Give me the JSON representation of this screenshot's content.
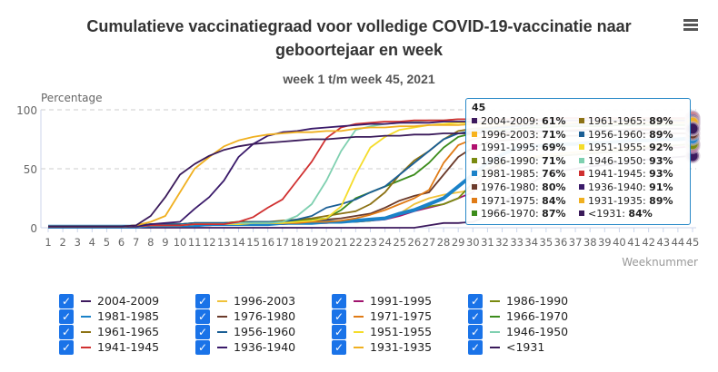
{
  "header": {
    "title_line1": "Cumulatieve vaccinatiegraad voor volledige COVID-19-vaccinatie naar",
    "title_line2": "geboortejaar en week",
    "subtitle": "week 1 t/m week 45, 2021",
    "menu_icon": "hamburger-menu-icon"
  },
  "chart_data": {
    "type": "line",
    "title": "Cumulatieve vaccinatiegraad voor volledige COVID-19-vaccinatie naar geboortejaar en week",
    "subtitle": "week 1 t/m week 45, 2021",
    "xlabel": "Weeknummer",
    "ylabel": "Percentage",
    "ylim": [
      0,
      100
    ],
    "yticks": [
      "0",
      "50",
      "100"
    ],
    "x": [
      1,
      2,
      3,
      4,
      5,
      6,
      7,
      8,
      9,
      10,
      11,
      12,
      13,
      14,
      15,
      16,
      17,
      18,
      19,
      20,
      21,
      22,
      23,
      24,
      25,
      26,
      27,
      28,
      29,
      30,
      31,
      32,
      33,
      34,
      35,
      36,
      37,
      38,
      39,
      40,
      41,
      42,
      43,
      44,
      45
    ],
    "grid": "horizontal dashed",
    "legend_placement": "bottom",
    "series": [
      {
        "name": "2004-2009",
        "color": "#3d1a5e",
        "values": [
          0,
          0,
          0,
          0,
          0,
          0,
          0,
          0,
          0,
          0,
          0,
          0,
          0,
          0,
          0,
          0,
          0,
          0,
          0,
          0,
          0,
          0,
          0,
          0,
          0,
          0,
          2,
          4,
          4,
          5,
          10,
          20,
          30,
          38,
          45,
          48,
          50,
          52,
          53,
          55,
          56,
          58,
          59,
          60,
          61
        ]
      },
      {
        "name": "1996-2003",
        "color": "#f0c23a",
        "values": [
          1,
          1,
          1,
          1,
          1,
          1,
          1,
          2,
          2,
          2,
          2,
          2,
          3,
          3,
          3,
          3,
          3,
          4,
          4,
          5,
          5,
          6,
          6,
          8,
          12,
          20,
          25,
          28,
          30,
          32,
          40,
          55,
          58,
          60,
          62,
          63,
          64,
          65,
          66,
          67,
          68,
          69,
          70,
          70,
          71
        ]
      },
      {
        "name": "1991-1995",
        "color": "#a0146e",
        "values": [
          1,
          1,
          1,
          1,
          1,
          1,
          1,
          2,
          2,
          2,
          2,
          2,
          3,
          3,
          3,
          3,
          3,
          4,
          4,
          4,
          5,
          5,
          6,
          7,
          10,
          14,
          17,
          20,
          25,
          30,
          48,
          55,
          58,
          59,
          60,
          61,
          62,
          63,
          64,
          65,
          66,
          67,
          68,
          68,
          69
        ]
      },
      {
        "name": "1986-1990",
        "color": "#7a8a10",
        "values": [
          1,
          1,
          1,
          1,
          1,
          1,
          1,
          2,
          2,
          2,
          2,
          3,
          3,
          3,
          3,
          3,
          4,
          4,
          4,
          5,
          5,
          5,
          6,
          8,
          12,
          15,
          18,
          20,
          25,
          38,
          50,
          55,
          58,
          59,
          60,
          61,
          62,
          63,
          64,
          65,
          66,
          68,
          69,
          70,
          71
        ]
      },
      {
        "name": "1981-1985",
        "color": "#1a82c8",
        "values": [
          1,
          1,
          1,
          1,
          1,
          1,
          1,
          2,
          2,
          2,
          2,
          3,
          3,
          3,
          3,
          3,
          4,
          4,
          4,
          5,
          5,
          6,
          7,
          8,
          12,
          15,
          20,
          25,
          35,
          45,
          55,
          62,
          68,
          69,
          70,
          71,
          71,
          72,
          72,
          73,
          74,
          74,
          75,
          75,
          76
        ]
      },
      {
        "name": "1976-1980",
        "color": "#6b3a2a",
        "values": [
          1,
          1,
          1,
          1,
          1,
          1,
          1,
          2,
          2,
          2,
          3,
          3,
          3,
          3,
          4,
          4,
          4,
          5,
          6,
          7,
          8,
          10,
          12,
          17,
          23,
          27,
          30,
          45,
          60,
          68,
          72,
          74,
          75,
          76,
          77,
          78,
          78,
          79,
          79,
          79,
          80,
          80,
          80,
          80,
          80
        ]
      },
      {
        "name": "1971-1975",
        "color": "#e07b16",
        "values": [
          1,
          1,
          1,
          1,
          1,
          1,
          1,
          2,
          2,
          2,
          3,
          3,
          3,
          3,
          4,
          4,
          4,
          4,
          5,
          5,
          6,
          8,
          11,
          15,
          20,
          25,
          32,
          55,
          70,
          75,
          78,
          79,
          80,
          81,
          82,
          82,
          83,
          83,
          83,
          83,
          84,
          84,
          84,
          84,
          84
        ]
      },
      {
        "name": "1966-1970",
        "color": "#3c8c1c",
        "values": [
          1,
          1,
          1,
          1,
          1,
          1,
          2,
          3,
          3,
          3,
          4,
          4,
          4,
          5,
          5,
          5,
          5,
          6,
          7,
          8,
          15,
          25,
          30,
          35,
          40,
          45,
          55,
          68,
          77,
          80,
          82,
          83,
          84,
          85,
          85,
          86,
          86,
          86,
          86,
          87,
          87,
          87,
          87,
          87,
          87
        ]
      },
      {
        "name": "1961-1965",
        "color": "#8c7214",
        "values": [
          1,
          1,
          1,
          1,
          1,
          1,
          2,
          3,
          3,
          3,
          4,
          4,
          4,
          5,
          5,
          5,
          6,
          7,
          8,
          10,
          12,
          14,
          20,
          30,
          45,
          57,
          65,
          75,
          82,
          84,
          85,
          86,
          87,
          87,
          88,
          88,
          88,
          88,
          89,
          89,
          89,
          89,
          89,
          89,
          89
        ]
      },
      {
        "name": "1956-1960",
        "color": "#1a5e94",
        "values": [
          1,
          1,
          1,
          1,
          1,
          1,
          2,
          3,
          3,
          3,
          4,
          4,
          4,
          4,
          5,
          5,
          5,
          7,
          10,
          17,
          20,
          24,
          30,
          35,
          45,
          55,
          65,
          75,
          80,
          82,
          84,
          85,
          86,
          87,
          87,
          88,
          88,
          88,
          88,
          89,
          89,
          89,
          89,
          89,
          89
        ]
      },
      {
        "name": "1951-1955",
        "color": "#f5dc2a",
        "values": [
          1,
          1,
          1,
          1,
          1,
          1,
          1,
          2,
          2,
          2,
          3,
          3,
          3,
          3,
          4,
          4,
          4,
          5,
          6,
          8,
          18,
          45,
          68,
          77,
          83,
          85,
          87,
          88,
          89,
          89,
          90,
          90,
          90,
          91,
          91,
          91,
          91,
          91,
          92,
          92,
          92,
          92,
          92,
          92,
          92
        ]
      },
      {
        "name": "1946-1950",
        "color": "#7fd0b0",
        "values": [
          1,
          1,
          1,
          1,
          1,
          1,
          1,
          2,
          2,
          2,
          3,
          3,
          3,
          4,
          4,
          4,
          5,
          10,
          20,
          40,
          65,
          83,
          86,
          88,
          89,
          90,
          91,
          91,
          92,
          92,
          92,
          92,
          92,
          92,
          93,
          93,
          93,
          93,
          93,
          93,
          93,
          93,
          93,
          93,
          93
        ]
      },
      {
        "name": "1941-1945",
        "color": "#d03030",
        "values": [
          1,
          1,
          1,
          1,
          1,
          1,
          1,
          2,
          2,
          2,
          3,
          3,
          3,
          5,
          9,
          17,
          24,
          40,
          56,
          76,
          85,
          88,
          89,
          90,
          90,
          91,
          91,
          91,
          92,
          92,
          92,
          92,
          92,
          92,
          92,
          93,
          93,
          93,
          93,
          93,
          93,
          93,
          93,
          93,
          93
        ]
      },
      {
        "name": "1936-1940",
        "color": "#3a1a6a",
        "values": [
          1,
          1,
          1,
          1,
          1,
          1,
          1,
          3,
          4,
          5,
          16,
          26,
          40,
          60,
          71,
          78,
          81,
          82,
          84,
          85,
          86,
          87,
          88,
          88,
          89,
          89,
          89,
          90,
          90,
          90,
          90,
          90,
          90,
          90,
          91,
          91,
          91,
          91,
          91,
          91,
          91,
          91,
          91,
          91,
          91
        ]
      },
      {
        "name": "1931-1935",
        "color": "#f0b020",
        "values": [
          1,
          1,
          1,
          1,
          1,
          1,
          2,
          5,
          10,
          30,
          50,
          60,
          69,
          74,
          77,
          79,
          80,
          81,
          81,
          82,
          82,
          84,
          85,
          85,
          86,
          86,
          87,
          87,
          87,
          88,
          88,
          88,
          88,
          88,
          88,
          88,
          89,
          89,
          89,
          89,
          89,
          89,
          89,
          89,
          89
        ]
      },
      {
        "name": "<1931",
        "color": "#3a1a5a",
        "values": [
          1,
          1,
          1,
          1,
          1,
          1,
          2,
          10,
          26,
          45,
          54,
          61,
          66,
          69,
          71,
          72,
          73,
          74,
          75,
          75,
          76,
          77,
          77,
          78,
          78,
          79,
          79,
          80,
          80,
          80,
          81,
          81,
          81,
          82,
          82,
          82,
          82,
          83,
          83,
          83,
          83,
          83,
          84,
          84,
          84
        ]
      }
    ],
    "tooltip": {
      "header": "45",
      "rows": [
        {
          "name": "2004-2009",
          "value": "61%",
          "color": "#3d1a5e"
        },
        {
          "name": "1996-2003",
          "value": "71%",
          "color": "#f7b21e"
        },
        {
          "name": "1991-1995",
          "value": "69%",
          "color": "#b0106e"
        },
        {
          "name": "1986-1990",
          "value": "71%",
          "color": "#7a8a10"
        },
        {
          "name": "1981-1985",
          "value": "76%",
          "color": "#1a82c8"
        },
        {
          "name": "1976-1980",
          "value": "80%",
          "color": "#6b3a2a"
        },
        {
          "name": "1971-1975",
          "value": "84%",
          "color": "#e07b16"
        },
        {
          "name": "1966-1970",
          "value": "87%",
          "color": "#3c8c1c"
        },
        {
          "name": "1961-1965",
          "value": "89%",
          "color": "#8c7214"
        },
        {
          "name": "1956-1960",
          "value": "89%",
          "color": "#1a5e94"
        },
        {
          "name": "1951-1955",
          "value": "92%",
          "color": "#f5dc2a"
        },
        {
          "name": "1946-1950",
          "value": "93%",
          "color": "#7fd0b0"
        },
        {
          "name": "1941-1945",
          "value": "93%",
          "color": "#d03030"
        },
        {
          "name": "1936-1940",
          "value": "91%",
          "color": "#3a1a6a"
        },
        {
          "name": "1931-1935",
          "value": "89%",
          "color": "#f0b020"
        },
        {
          "name": "<1931",
          "value": "84%",
          "color": "#3a1a5a"
        }
      ]
    }
  },
  "legend_order": [
    "2004-2009",
    "1996-2003",
    "1991-1995",
    "1986-1990",
    "1981-1985",
    "1976-1980",
    "1971-1975",
    "1966-1970",
    "1961-1965",
    "1956-1960",
    "1951-1955",
    "1946-1950",
    "1941-1945",
    "1936-1940",
    "1931-1935",
    "<1931"
  ],
  "legend_checked": true,
  "accent": "#1a73e8"
}
